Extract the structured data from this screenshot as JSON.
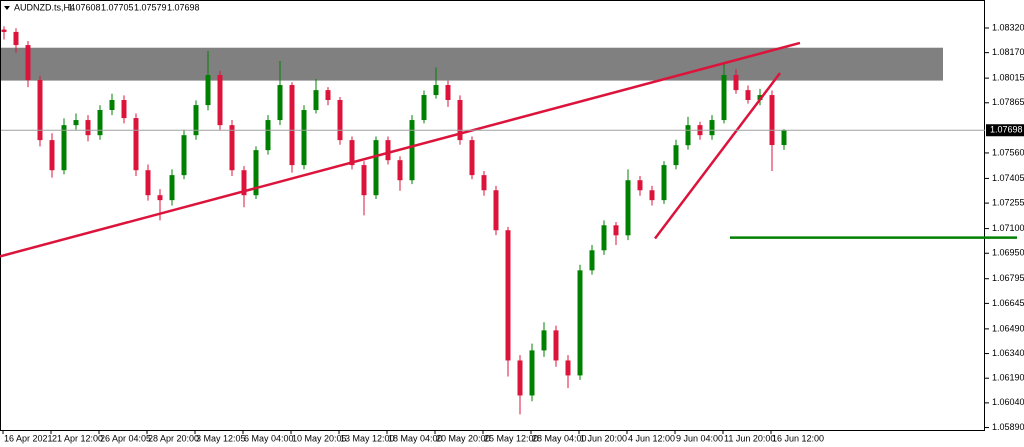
{
  "chart_data": {
    "type": "candlestick",
    "symbol": "AUDNZD.ts,H4",
    "up_color": "#008000",
    "down_color": "#dc143c",
    "ylim": [
      1.05875,
      1.08405
    ],
    "yticks": [
      {
        "value": 1.0832,
        "label": "1.08320"
      },
      {
        "value": 1.0817,
        "label": "1.08170"
      },
      1.08015,
      1.07865,
      {
        "value": 1.0756,
        "label": "1.07560"
      },
      1.07405,
      1.07255,
      {
        "value": 1.071,
        "label": "1.07100"
      },
      {
        "value": 1.0695,
        "label": "1.06950"
      },
      1.06795,
      1.06645,
      {
        "value": 1.0649,
        "label": "1.06490"
      },
      {
        "value": 1.0634,
        "label": "1.06340"
      },
      {
        "value": 1.0619,
        "label": "1.06190"
      },
      {
        "value": 1.0604,
        "label": "1.06040"
      },
      {
        "value": 1.0589,
        "label": "1.05890"
      }
    ],
    "xticks": [
      "16 Apr 2021",
      "21 Apr 12:00",
      "26 Apr 04:05",
      "28 Apr 20:00",
      "3 May 12:05",
      "6 May 04:00",
      "10 May 20:05",
      "13 May 12:00",
      "18 May 04:00",
      "20 May 20:00",
      "25 May 12:00",
      "28 May 04:00",
      "1 Jun 20:00",
      "4 Jun 12:00",
      "9 Jun 04:00",
      "11 Jun 20:00",
      "16 Jun 12:00"
    ],
    "candles": [
      [
        1.0831,
        1.0833,
        1.0825,
        1.08296
      ],
      [
        1.08296,
        1.08318,
        1.0817,
        1.08216
      ],
      [
        1.08216,
        1.0824,
        1.0796,
        1.08003
      ],
      [
        1.08003,
        1.0803,
        1.076,
        1.07638
      ],
      [
        1.07638,
        1.0768,
        1.0741,
        1.07455
      ],
      [
        1.07455,
        1.0777,
        1.0743,
        1.07729
      ],
      [
        1.07729,
        1.078,
        1.077,
        1.0776
      ],
      [
        1.0776,
        1.0779,
        1.0763,
        1.07668
      ],
      [
        1.07668,
        1.0785,
        1.0764,
        1.07821
      ],
      [
        1.07821,
        1.0792,
        1.0779,
        1.07882
      ],
      [
        1.07882,
        1.0791,
        1.0774,
        1.07772
      ],
      [
        1.07772,
        1.078,
        1.0742,
        1.07455
      ],
      [
        1.07455,
        1.0749,
        1.0727,
        1.07303
      ],
      [
        1.07303,
        1.0734,
        1.0715,
        1.07273
      ],
      [
        1.07273,
        1.0746,
        1.0724,
        1.07425
      ],
      [
        1.07425,
        1.077,
        1.074,
        1.07668
      ],
      [
        1.07668,
        1.0788,
        1.0764,
        1.07851
      ],
      [
        1.07851,
        1.0818,
        1.0782,
        1.08034
      ],
      [
        1.08034,
        1.0806,
        1.077,
        1.07729
      ],
      [
        1.07729,
        1.0776,
        1.0742,
        1.07455
      ],
      [
        1.07455,
        1.0748,
        1.0723,
        1.07303
      ],
      [
        1.07303,
        1.076,
        1.0728,
        1.07577
      ],
      [
        1.07577,
        1.0779,
        1.0755,
        1.0776
      ],
      [
        1.0776,
        1.0812,
        1.0773,
        1.07973
      ],
      [
        1.07973,
        1.0799,
        1.0744,
        1.07486
      ],
      [
        1.07486,
        1.0785,
        1.0746,
        1.07821
      ],
      [
        1.07821,
        1.0801,
        1.078,
        1.07942
      ],
      [
        1.07942,
        1.0796,
        1.0785,
        1.07882
      ],
      [
        1.07882,
        1.079,
        1.0761,
        1.07638
      ],
      [
        1.07638,
        1.0766,
        1.0746,
        1.07486
      ],
      [
        1.07486,
        1.0751,
        1.0718,
        1.07303
      ],
      [
        1.07303,
        1.0766,
        1.0728,
        1.07638
      ],
      [
        1.07638,
        1.0766,
        1.0749,
        1.07516
      ],
      [
        1.07516,
        1.0754,
        1.0733,
        1.07394
      ],
      [
        1.07394,
        1.0779,
        1.0737,
        1.0776
      ],
      [
        1.0776,
        1.0794,
        1.0774,
        1.07912
      ],
      [
        1.07912,
        1.0808,
        1.0789,
        1.07973
      ],
      [
        1.07973,
        1.08,
        1.0784,
        1.07882
      ],
      [
        1.07882,
        1.0791,
        1.0761,
        1.07638
      ],
      [
        1.07638,
        1.0766,
        1.074,
        1.07425
      ],
      [
        1.07425,
        1.0745,
        1.073,
        1.07333
      ],
      [
        1.07333,
        1.0736,
        1.0706,
        1.0709
      ],
      [
        1.0709,
        1.0711,
        1.062,
        1.06298
      ],
      [
        1.06298,
        1.0633,
        1.0597,
        1.06085
      ],
      [
        1.06085,
        1.064,
        1.0605,
        1.06359
      ],
      [
        1.06359,
        1.0653,
        1.0632,
        1.06481
      ],
      [
        1.06481,
        1.0651,
        1.0626,
        1.06298
      ],
      [
        1.06298,
        1.0633,
        1.0613,
        1.06207
      ],
      [
        1.06207,
        1.0688,
        1.0618,
        1.06846
      ],
      [
        1.06846,
        1.07,
        1.0682,
        1.06968
      ],
      [
        1.06968,
        1.0715,
        1.0694,
        1.0712
      ],
      [
        1.0712,
        1.0714,
        1.07,
        1.07059
      ],
      [
        1.07059,
        1.0746,
        1.0703,
        1.07394
      ],
      [
        1.07394,
        1.0742,
        1.073,
        1.07333
      ],
      [
        1.07333,
        1.0736,
        1.0724,
        1.07273
      ],
      [
        1.07273,
        1.0751,
        1.0725,
        1.07486
      ],
      [
        1.07486,
        1.0764,
        1.0746,
        1.07607
      ],
      [
        1.07607,
        1.0778,
        1.0758,
        1.07729
      ],
      [
        1.07729,
        1.0775,
        1.0764,
        1.07668
      ],
      [
        1.07668,
        1.0779,
        1.0764,
        1.0776
      ],
      [
        1.0776,
        1.081,
        1.0774,
        1.08034
      ],
      [
        1.08034,
        1.0807,
        1.0792,
        1.07942
      ],
      [
        1.07942,
        1.0797,
        1.0786,
        1.07882
      ],
      [
        1.07882,
        1.0795,
        1.0785,
        1.07912
      ],
      [
        1.07912,
        1.0794,
        1.0745,
        1.07608
      ],
      [
        1.07608,
        1.07705,
        1.07579,
        1.07698
      ]
    ],
    "zone": {
      "low": 1.08,
      "high": 1.082,
      "color": "#808080"
    },
    "trendlines": [
      {
        "from": [
          -0.33,
          1.06931
        ],
        "to": [
          66.33,
          1.08229
        ],
        "color": "#dc143c"
      },
      {
        "from": [
          54.25,
          1.0704
        ],
        "to": [
          64.67,
          1.08046
        ],
        "color": "#dc143c"
      }
    ],
    "level": {
      "value": 1.07045,
      "from": 60.5,
      "color": "#008000"
    }
  }
}
